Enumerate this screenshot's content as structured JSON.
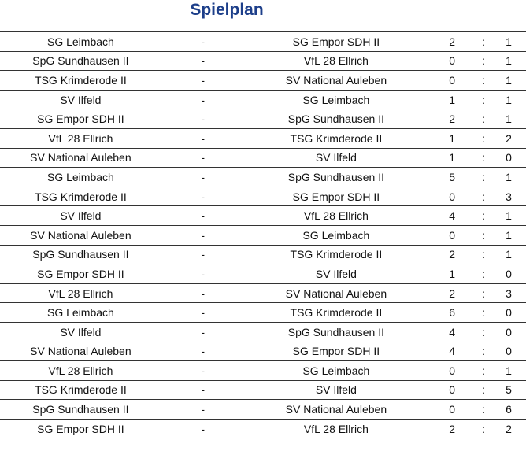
{
  "title": "Spielplan",
  "separator": "-",
  "score_separator": ":",
  "matches": [
    {
      "home": "SG Leimbach",
      "away": "SG Empor SDH II",
      "home_goals": "2",
      "away_goals": "1"
    },
    {
      "home": "SpG Sundhausen II",
      "away": "VfL 28 Ellrich",
      "home_goals": "0",
      "away_goals": "1"
    },
    {
      "home": "TSG Krimderode II",
      "away": "SV National Auleben",
      "home_goals": "0",
      "away_goals": "1"
    },
    {
      "home": "SV Ilfeld",
      "away": "SG Leimbach",
      "home_goals": "1",
      "away_goals": "1"
    },
    {
      "home": "SG Empor SDH II",
      "away": "SpG Sundhausen II",
      "home_goals": "2",
      "away_goals": "1"
    },
    {
      "home": "VfL 28 Ellrich",
      "away": "TSG Krimderode II",
      "home_goals": "1",
      "away_goals": "2"
    },
    {
      "home": "SV National Auleben",
      "away": "SV Ilfeld",
      "home_goals": "1",
      "away_goals": "0"
    },
    {
      "home": "SG Leimbach",
      "away": "SpG Sundhausen II",
      "home_goals": "5",
      "away_goals": "1"
    },
    {
      "home": "TSG Krimderode II",
      "away": "SG Empor SDH II",
      "home_goals": "0",
      "away_goals": "3"
    },
    {
      "home": "SV Ilfeld",
      "away": "VfL 28 Ellrich",
      "home_goals": "4",
      "away_goals": "1"
    },
    {
      "home": "SV National Auleben",
      "away": "SG Leimbach",
      "home_goals": "0",
      "away_goals": "1"
    },
    {
      "home": "SpG Sundhausen II",
      "away": "TSG Krimderode II",
      "home_goals": "2",
      "away_goals": "1"
    },
    {
      "home": "SG Empor SDH II",
      "away": "SV Ilfeld",
      "home_goals": "1",
      "away_goals": "0"
    },
    {
      "home": "VfL 28 Ellrich",
      "away": "SV National Auleben",
      "home_goals": "2",
      "away_goals": "3"
    },
    {
      "home": "SG Leimbach",
      "away": "TSG Krimderode II",
      "home_goals": "6",
      "away_goals": "0"
    },
    {
      "home": "SV Ilfeld",
      "away": "SpG Sundhausen II",
      "home_goals": "4",
      "away_goals": "0"
    },
    {
      "home": "SV National Auleben",
      "away": "SG Empor SDH II",
      "home_goals": "4",
      "away_goals": "0"
    },
    {
      "home": "VfL 28 Ellrich",
      "away": "SG Leimbach",
      "home_goals": "0",
      "away_goals": "1"
    },
    {
      "home": "TSG Krimderode II",
      "away": "SV Ilfeld",
      "home_goals": "0",
      "away_goals": "5"
    },
    {
      "home": "SpG Sundhausen II",
      "away": "SV National Auleben",
      "home_goals": "0",
      "away_goals": "6"
    },
    {
      "home": "SG Empor SDH II",
      "away": "VfL 28 Ellrich",
      "home_goals": "2",
      "away_goals": "2"
    }
  ]
}
